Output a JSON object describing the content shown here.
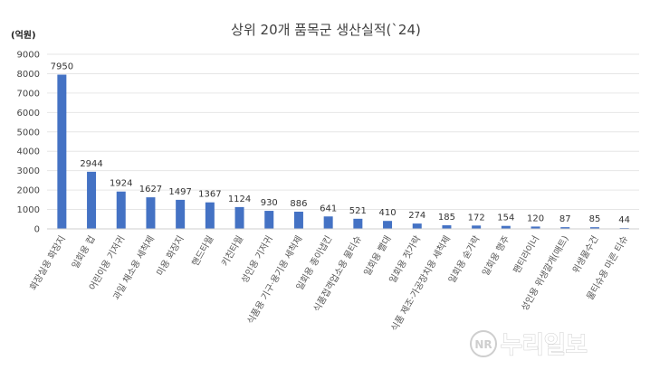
{
  "chart_data": {
    "type": "bar",
    "title": "상위 20개 품목군 생산실적(`24)",
    "unit_label": "(억원)",
    "categories": [
      "화장실용 화장지",
      "일회용 컵",
      "어린이용 기저귀",
      "과일 채소용 세척제",
      "미용 화장지",
      "핸드타월",
      "키친타월",
      "성인용 기저귀",
      "식품용 기구·용기용 세척제",
      "일회용 종이냅킨",
      "식품접객업소용 물티슈",
      "일회용 빨대",
      "일회용 젓가락",
      "식품 제조·가공장치용 세척제",
      "일회용 숟가락",
      "일회용 행주",
      "팬티라이너",
      "성인용 위생깔개(매트)",
      "위생물수건",
      "물티슈용 마른 티슈"
    ],
    "values": [
      7950,
      2944,
      1924,
      1627,
      1497,
      1367,
      1124,
      930,
      886,
      641,
      521,
      410,
      274,
      185,
      172,
      154,
      120,
      87,
      85,
      44
    ],
    "ylim": [
      0,
      9000
    ],
    "yticks": [
      0,
      1000,
      2000,
      3000,
      4000,
      5000,
      6000,
      7000,
      8000,
      9000
    ],
    "grid": true,
    "bar_color": "#4472c4"
  },
  "watermark": {
    "badge": "NR",
    "text": "누리일보"
  }
}
